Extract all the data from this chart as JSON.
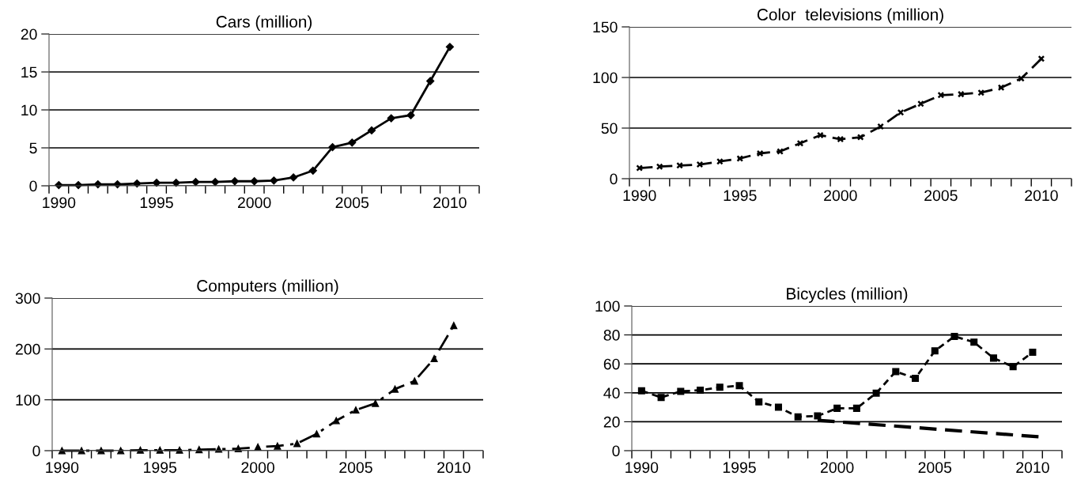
{
  "chart_data": [
    {
      "type": "line",
      "title": "Cars (million)",
      "x": [
        1990,
        1991,
        1992,
        1993,
        1994,
        1995,
        1996,
        1997,
        1998,
        1999,
        2000,
        2001,
        2002,
        2003,
        2004,
        2005,
        2006,
        2007,
        2008,
        2009,
        2010
      ],
      "series": [
        {
          "color": "#000000",
          "values": [
            0.1,
            0.1,
            0.2,
            0.2,
            0.3,
            0.4,
            0.4,
            0.5,
            0.5,
            0.6,
            0.6,
            0.7,
            1.1,
            2.0,
            5.1,
            5.7,
            7.3,
            8.9,
            9.3,
            13.8,
            18.3
          ]
        }
      ],
      "xlim": [
        1989.5,
        2011.5
      ],
      "xticks": [
        1990,
        1995,
        2000,
        2005,
        2010
      ],
      "ylim": [
        0,
        20
      ],
      "yticks": [
        0,
        5,
        10,
        15,
        20
      ],
      "grid": "y",
      "marker": "diamond",
      "line_style": "solid"
    },
    {
      "type": "line",
      "title": "Color  televisions (million)",
      "x": [
        1990,
        1991,
        1992,
        1993,
        1994,
        1995,
        1996,
        1997,
        1998,
        1999,
        2000,
        2001,
        2002,
        2003,
        2004,
        2005,
        2006,
        2007,
        2008,
        2009,
        2010
      ],
      "series": [
        {
          "color": "#000000",
          "values": [
            10.5,
            12,
            13,
            14,
            17,
            20,
            25,
            27,
            35,
            43,
            39,
            41,
            51.5,
            65.5,
            74,
            82.6,
            83.5,
            85,
            90,
            99,
            118.5
          ]
        }
      ],
      "xlim": [
        1989.5,
        2011.5
      ],
      "xticks": [
        1990,
        1995,
        2000,
        2005,
        2010
      ],
      "ylim": [
        0,
        150
      ],
      "yticks": [
        0,
        50,
        100,
        150
      ],
      "grid": "y",
      "marker": "cross",
      "line_style": "dashed"
    },
    {
      "type": "line",
      "title": "Computers (million)",
      "x": [
        1990,
        1991,
        1992,
        1993,
        1994,
        1995,
        1996,
        1997,
        1998,
        1999,
        2000,
        2001,
        2002,
        2003,
        2004,
        2005,
        2006,
        2007,
        2008,
        2009,
        2010
      ],
      "series": [
        {
          "color": "#000000",
          "values": [
            0,
            0,
            0,
            0,
            1,
            1,
            1,
            2,
            3,
            4,
            7,
            9,
            14,
            33,
            59,
            80,
            93,
            121,
            137,
            181,
            246
          ]
        }
      ],
      "xlim": [
        1989.5,
        2011.5
      ],
      "xticks": [
        1990,
        1995,
        2000,
        2005,
        2010
      ],
      "ylim": [
        0,
        300
      ],
      "yticks": [
        0,
        100,
        200,
        300
      ],
      "grid": "y",
      "marker": "triangle",
      "line_style": "dashdot"
    },
    {
      "type": "line",
      "title": "Bicycles (million)",
      "x": [
        1990,
        1991,
        1992,
        1993,
        1994,
        1995,
        1996,
        1997,
        1998,
        1999,
        2000,
        2001,
        2002,
        2003,
        2004,
        2005,
        2006,
        2007,
        2008,
        2009,
        2010
      ],
      "series": [
        {
          "color": "#000000",
          "values": [
            41.4,
            36.8,
            41,
            41.8,
            43.8,
            44.9,
            33.7,
            30,
            23.4,
            24,
            29.3,
            29.3,
            39.8,
            54.7,
            50,
            69,
            79,
            75,
            64,
            58,
            68
          ]
        },
        {
          "color": "#000000",
          "x": [
            1999,
            2010.3
          ],
          "values": [
            21,
            9.6
          ],
          "marker": "none",
          "line_style": "longdash"
        }
      ],
      "xlim": [
        1989.5,
        2011.5
      ],
      "xticks": [
        1990,
        1995,
        2000,
        2005,
        2010
      ],
      "ylim": [
        0,
        100
      ],
      "yticks": [
        0,
        20,
        40,
        60,
        80,
        100
      ],
      "grid": "y",
      "marker": "square",
      "line_style": "dotted"
    }
  ]
}
